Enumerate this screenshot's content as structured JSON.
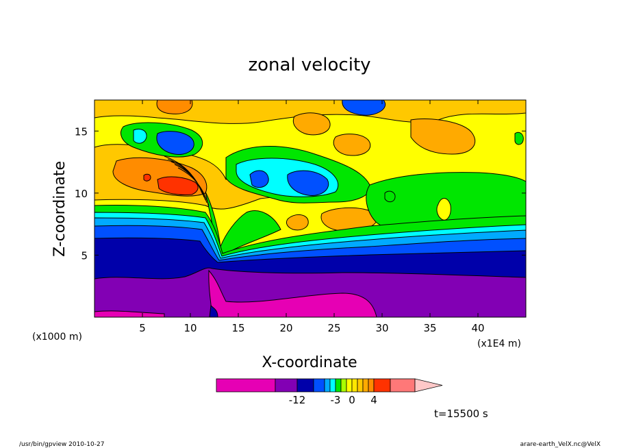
{
  "chart_data": {
    "type": "contour",
    "title": "zonal velocity",
    "xlabel": "X-coordinate",
    "ylabel": "Z-coordinate",
    "x_unit_label": "(x1E4 m)",
    "y_unit_label": "(x1000 m)",
    "xlim": [
      0,
      45
    ],
    "ylim": [
      0,
      17.5
    ],
    "x_ticks": [
      "5",
      "10",
      "15",
      "20",
      "25",
      "30",
      "35",
      "40"
    ],
    "y_ticks": [
      "5",
      "10",
      "15"
    ],
    "x_tick_values": [
      5,
      10,
      15,
      20,
      25,
      30,
      35,
      40
    ],
    "y_tick_values": [
      5,
      10,
      15
    ],
    "colorbar": {
      "tick_labels": [
        "-12",
        "-3",
        "0",
        "4"
      ],
      "tick_values": [
        -12,
        -3,
        0,
        4
      ],
      "levels": [
        -20,
        -16,
        -12,
        -9,
        -6,
        -4,
        -3,
        -2,
        -1,
        0,
        1,
        2,
        3,
        4,
        6,
        8,
        12
      ],
      "colors": [
        "#e600b4",
        "#8200b4",
        "#0000aa",
        "#0050ff",
        "#00aaff",
        "#00ffff",
        "#00e600",
        "#aaff00",
        "#ffff00",
        "#ffe600",
        "#ffc800",
        "#ffaa00",
        "#ff8c00",
        "#ff3200",
        "#ff7878",
        "#ffc8c8"
      ]
    },
    "time_label": "t=15500 s"
  },
  "footer": {
    "left": "/usr/bin/gpview   2010-10-27",
    "right": "arare-earth_VelX.nc@VelX"
  }
}
